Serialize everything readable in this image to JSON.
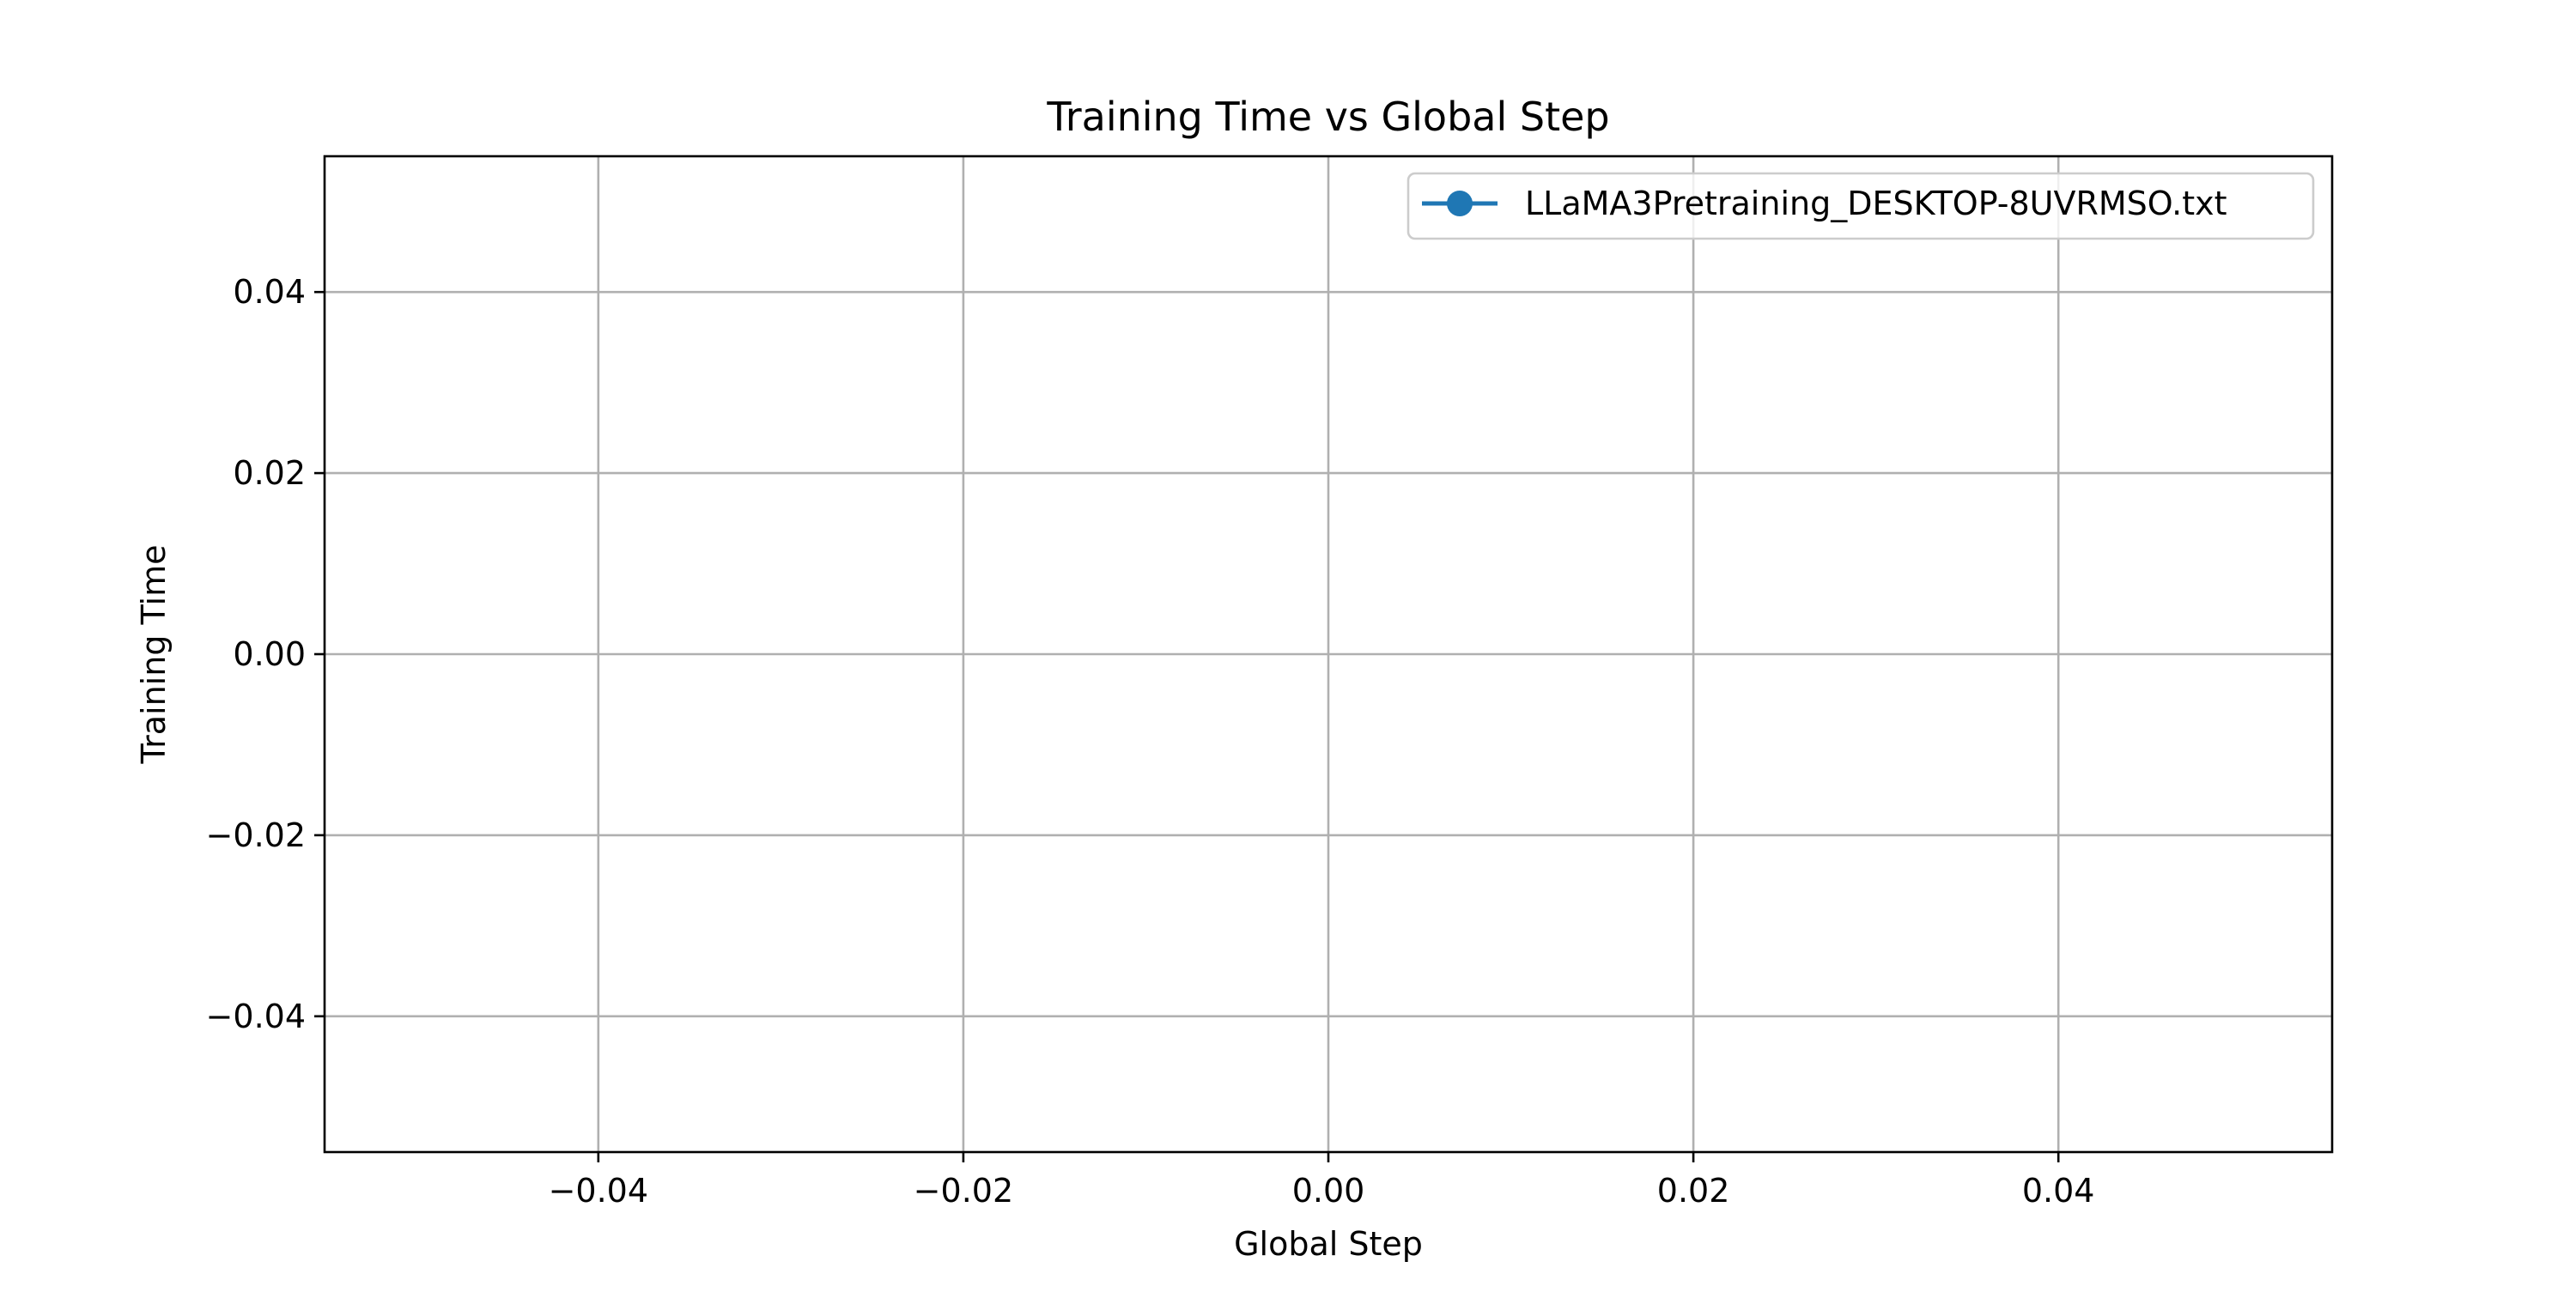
{
  "chart_data": {
    "type": "line",
    "title": "Training Time vs Global Step",
    "xlabel": "Global Step",
    "ylabel": "Training Time",
    "xlim": [
      -0.055,
      0.055
    ],
    "ylim": [
      -0.055,
      0.055
    ],
    "xticks": [
      -0.04,
      -0.02,
      0.0,
      0.02,
      0.04
    ],
    "xtick_labels": [
      "−0.04",
      "−0.02",
      "0.00",
      "0.02",
      "0.04"
    ],
    "yticks": [
      -0.04,
      -0.02,
      0.0,
      0.02,
      0.04
    ],
    "ytick_labels": [
      "−0.04",
      "−0.02",
      "0.00",
      "0.02",
      "0.04"
    ],
    "grid": true,
    "legend_position": "upper right",
    "series": [
      {
        "name": "LLaMA3Pretraining_DESKTOP-8UVRMSO.txt",
        "color": "#1f77b4",
        "marker": "circle",
        "x": [],
        "y": []
      }
    ]
  }
}
